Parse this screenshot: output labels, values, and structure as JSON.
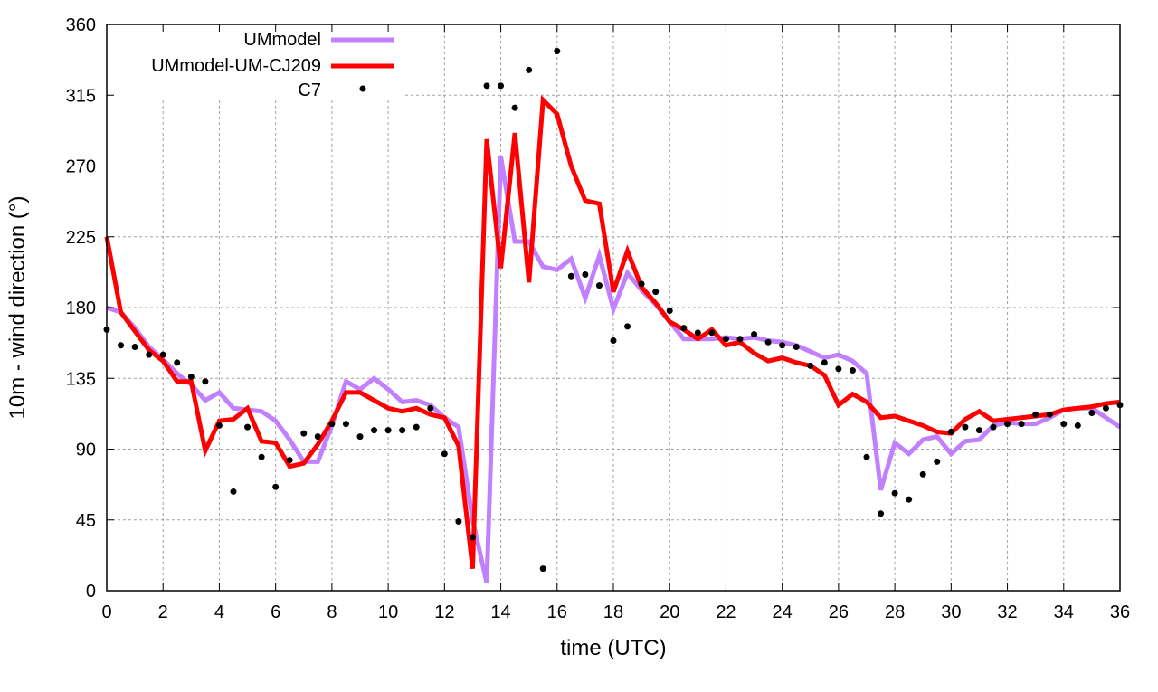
{
  "chart_data": {
    "type": "line",
    "title": "",
    "xlabel": "time (UTC)",
    "ylabel": "10m - wind direction (°)",
    "xlim": [
      0,
      36
    ],
    "ylim": [
      0,
      360
    ],
    "xticks": [
      "0",
      "2",
      "4",
      "6",
      "8",
      "10",
      "12",
      "14",
      "16",
      "18",
      "20",
      "22",
      "24",
      "26",
      "28",
      "30",
      "32",
      "34",
      "36"
    ],
    "yticks": [
      "0",
      "45",
      "90",
      "135",
      "180",
      "225",
      "270",
      "315",
      "360"
    ],
    "grid": true,
    "legend_position": "top-left",
    "x": [
      0,
      0.5,
      1,
      1.5,
      2,
      2.5,
      3,
      3.5,
      4,
      4.5,
      5,
      5.5,
      6,
      6.5,
      7,
      7.5,
      8,
      8.5,
      9,
      9.5,
      10,
      10.5,
      11,
      11.5,
      12,
      12.5,
      13,
      13.5,
      14,
      14.5,
      15,
      15.5,
      16,
      16.5,
      17,
      17.5,
      18,
      18.5,
      19,
      19.5,
      20,
      20.5,
      21,
      21.5,
      22,
      22.5,
      23,
      23.5,
      24,
      24.5,
      25,
      25.5,
      26,
      26.5,
      27,
      27.5,
      28,
      28.5,
      29,
      29.5,
      30,
      30.5,
      31,
      31.5,
      32,
      32.5,
      33,
      33.5,
      34,
      34.5,
      35,
      35.5,
      36
    ],
    "series": [
      {
        "name": "UMmodel",
        "style": "line",
        "color": "#c080ff",
        "values": [
          180,
          177,
          167,
          155,
          147,
          138,
          131,
          121,
          126,
          116,
          115,
          114,
          108,
          96,
          82,
          82,
          105,
          133,
          128,
          135,
          128,
          120,
          121,
          118,
          110,
          104,
          45,
          5,
          276,
          222,
          222,
          206,
          204,
          211,
          186,
          213,
          179,
          202,
          191,
          182,
          171,
          160,
          160,
          160,
          161,
          160,
          161,
          159,
          158,
          156,
          152,
          148,
          150,
          146,
          138,
          64,
          94,
          87,
          96,
          98,
          87,
          95,
          96,
          105,
          107,
          106,
          106,
          110,
          115,
          116,
          116,
          110,
          104
        ]
      },
      {
        "name": "UMmodel-UM-CJ209",
        "style": "line",
        "color": "#ff0000",
        "values": [
          225,
          177,
          165,
          153,
          146,
          133,
          133,
          89,
          108,
          109,
          116,
          95,
          94,
          79,
          81,
          93,
          108,
          126,
          126,
          121,
          116,
          114,
          116,
          112,
          110,
          92,
          14,
          287,
          205,
          291,
          196,
          312,
          303,
          270,
          248,
          246,
          190,
          216,
          193,
          183,
          171,
          166,
          160,
          166,
          156,
          158,
          151,
          146,
          148,
          145,
          143,
          137,
          118,
          125,
          120,
          110,
          111,
          108,
          105,
          101,
          100,
          109,
          114,
          108,
          109,
          110,
          111,
          112,
          115,
          116,
          117,
          119,
          120
        ]
      },
      {
        "name": "C7",
        "style": "points",
        "color": "#000000",
        "values": [
          166,
          156,
          155,
          150,
          150,
          145,
          136,
          133,
          105,
          63,
          104,
          85,
          66,
          83,
          100,
          98,
          106,
          106,
          98,
          102,
          102,
          102,
          104,
          116,
          87,
          44,
          34,
          321,
          321,
          307,
          331,
          14,
          343,
          200,
          201,
          194,
          159,
          168,
          195,
          190,
          178,
          167,
          164,
          164,
          160,
          160,
          163,
          158,
          156,
          155,
          143,
          145,
          141,
          140,
          85,
          49,
          62,
          58,
          74,
          82,
          101,
          104,
          102,
          104,
          106,
          106,
          112,
          112,
          106,
          105,
          113,
          116,
          118
        ]
      }
    ]
  }
}
